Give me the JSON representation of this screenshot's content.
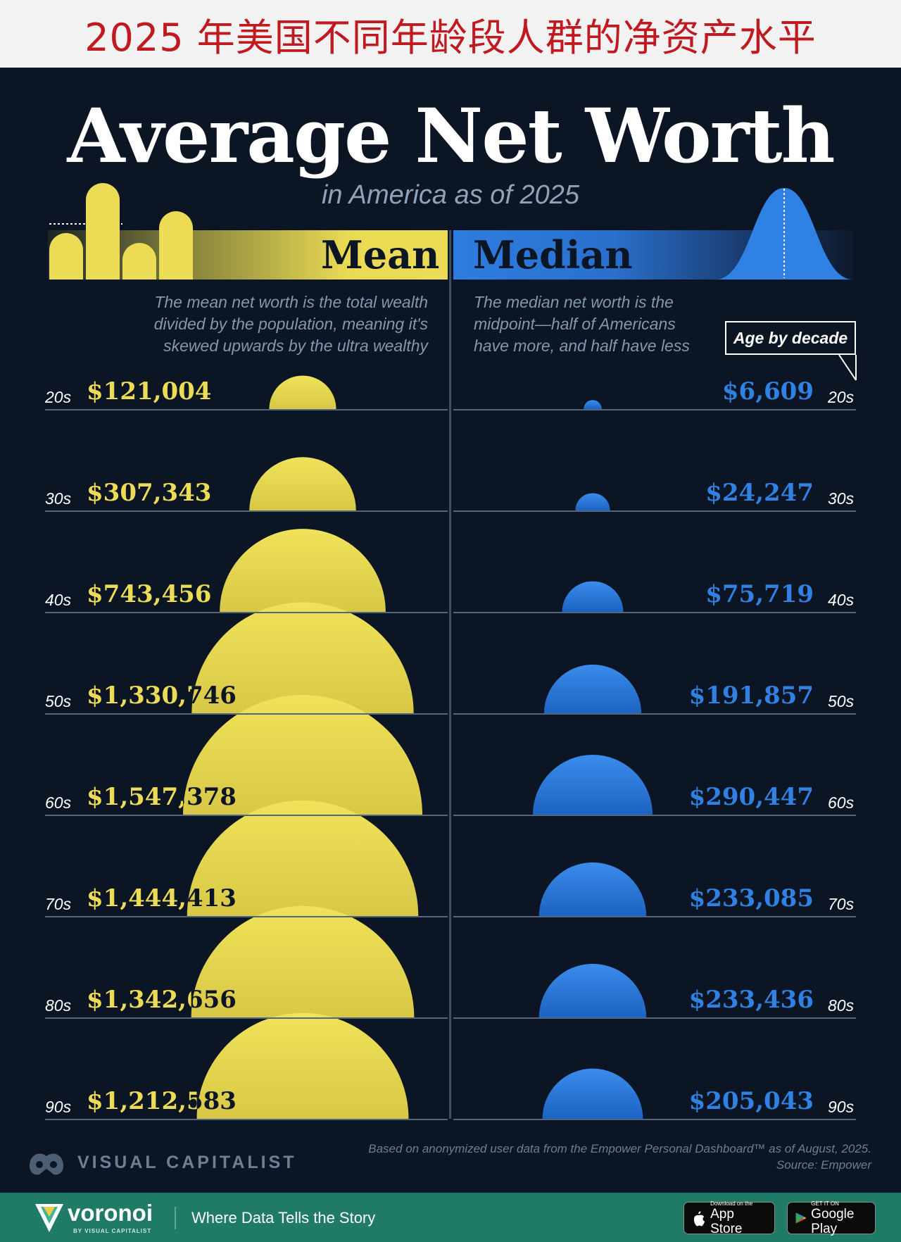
{
  "banner": {
    "title": "2025 年美国不同年龄段人群的净资产水平"
  },
  "header": {
    "title": "Average Net Worth",
    "subtitle": "in America as of 2025",
    "mean_label": "Mean",
    "median_label": "Median",
    "mean_description": [
      "The mean net worth is the total wealth",
      "divided by the population, meaning it's",
      "skewed upwards by the ultra wealthy"
    ],
    "median_description": [
      "The median net worth is the",
      "midpoint—half of Americans",
      "have more, and half have less"
    ],
    "legend_box": "Age by decade"
  },
  "chart_data": {
    "type": "semicircle-bubble",
    "categories": [
      "20s",
      "30s",
      "40s",
      "50s",
      "60s",
      "70s",
      "80s",
      "90s"
    ],
    "series": [
      {
        "name": "Mean",
        "values": [
          121004,
          307343,
          743456,
          1330746,
          1547378,
          1444413,
          1342656,
          1212583
        ],
        "labels": [
          "$121,004",
          "$307,343",
          "$743,456",
          "$1,330,746",
          "$1,547,378",
          "$1,444,413",
          "$1,342,656",
          "$1,212,583"
        ]
      },
      {
        "name": "Median",
        "values": [
          6609,
          24247,
          75719,
          191857,
          290447,
          233085,
          233436,
          205043
        ],
        "labels": [
          "$6,609",
          "$24,247",
          "$75,719",
          "$191,857",
          "$290,447",
          "$233,085",
          "$233,436",
          "$205,043"
        ]
      }
    ],
    "colors": {
      "mean": "#ecdc55",
      "median": "#2f82e4"
    }
  },
  "footer": {
    "brand": "VISUAL CAPITALIST",
    "source_line1": "Based on anonymized user data from the Empower Personal Dashboard™ as of August, 2025.",
    "source_line2": "Source: Empower",
    "voronoi": "voronoi",
    "voronoi_sub": "BY VISUAL CAPITALIST",
    "tagline": "Where Data Tells the Story",
    "appstore_small": "Download on the",
    "appstore_big": "App Store",
    "googleplay_small": "GET IT ON",
    "googleplay_big": "Google Play"
  }
}
